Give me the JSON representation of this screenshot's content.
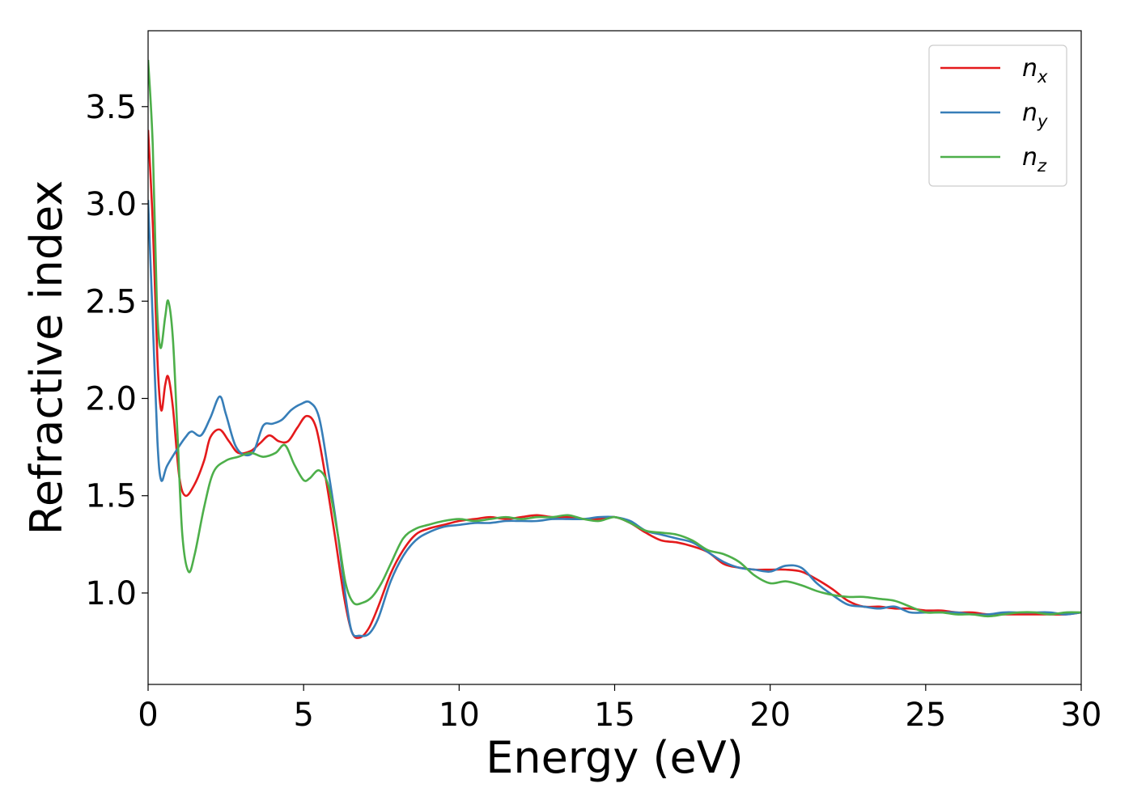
{
  "chart_data": {
    "type": "line",
    "title": "",
    "xlabel": "Energy (eV)",
    "ylabel": "Refractive index",
    "xlim": [
      0,
      30
    ],
    "ylim": [
      0.53,
      3.89
    ],
    "xticks": [
      0,
      5,
      10,
      15,
      20,
      25,
      30
    ],
    "xtick_labels": [
      "0",
      "5",
      "10",
      "15",
      "20",
      "25",
      "30"
    ],
    "yticks": [
      1.0,
      1.5,
      2.0,
      2.5,
      3.0,
      3.5
    ],
    "ytick_labels": [
      "1.0",
      "1.5",
      "2.0",
      "2.5",
      "3.0",
      "3.5"
    ],
    "grid": false,
    "legend_position": "top-right",
    "series": [
      {
        "name": "n_x",
        "legend_main": "n",
        "legend_sub": "x",
        "color": "#e41a1c",
        "points": [
          [
            0,
            3.38
          ],
          [
            0.15,
            2.9
          ],
          [
            0.3,
            2.2
          ],
          [
            0.42,
            1.94
          ],
          [
            0.55,
            2.07
          ],
          [
            0.65,
            2.11
          ],
          [
            0.8,
            1.95
          ],
          [
            1.0,
            1.6
          ],
          [
            1.2,
            1.5
          ],
          [
            1.5,
            1.56
          ],
          [
            1.8,
            1.68
          ],
          [
            2.0,
            1.8
          ],
          [
            2.3,
            1.84
          ],
          [
            2.6,
            1.78
          ],
          [
            2.9,
            1.72
          ],
          [
            3.3,
            1.73
          ],
          [
            3.6,
            1.77
          ],
          [
            3.9,
            1.81
          ],
          [
            4.2,
            1.78
          ],
          [
            4.5,
            1.78
          ],
          [
            4.8,
            1.85
          ],
          [
            5.1,
            1.91
          ],
          [
            5.4,
            1.85
          ],
          [
            5.7,
            1.6
          ],
          [
            6.0,
            1.3
          ],
          [
            6.3,
            0.98
          ],
          [
            6.55,
            0.8
          ],
          [
            6.8,
            0.77
          ],
          [
            7.1,
            0.82
          ],
          [
            7.4,
            0.93
          ],
          [
            7.8,
            1.1
          ],
          [
            8.2,
            1.22
          ],
          [
            8.6,
            1.3
          ],
          [
            9.0,
            1.33
          ],
          [
            9.5,
            1.35
          ],
          [
            10.0,
            1.37
          ],
          [
            10.5,
            1.38
          ],
          [
            11.0,
            1.39
          ],
          [
            11.5,
            1.38
          ],
          [
            12.0,
            1.39
          ],
          [
            12.5,
            1.4
          ],
          [
            13.0,
            1.39
          ],
          [
            13.5,
            1.39
          ],
          [
            14.0,
            1.38
          ],
          [
            14.5,
            1.38
          ],
          [
            15.0,
            1.39
          ],
          [
            15.5,
            1.36
          ],
          [
            16.0,
            1.31
          ],
          [
            16.5,
            1.27
          ],
          [
            17.0,
            1.26
          ],
          [
            17.5,
            1.24
          ],
          [
            18.0,
            1.21
          ],
          [
            18.5,
            1.15
          ],
          [
            19.0,
            1.13
          ],
          [
            19.5,
            1.12
          ],
          [
            20.0,
            1.12
          ],
          [
            20.5,
            1.12
          ],
          [
            21.0,
            1.11
          ],
          [
            21.5,
            1.07
          ],
          [
            22.0,
            1.02
          ],
          [
            22.5,
            0.96
          ],
          [
            23.0,
            0.93
          ],
          [
            23.5,
            0.93
          ],
          [
            24.0,
            0.92
          ],
          [
            24.5,
            0.92
          ],
          [
            25.0,
            0.91
          ],
          [
            25.5,
            0.91
          ],
          [
            26.0,
            0.9
          ],
          [
            26.5,
            0.9
          ],
          [
            27.0,
            0.89
          ],
          [
            27.5,
            0.89
          ],
          [
            28.0,
            0.89
          ],
          [
            28.5,
            0.89
          ],
          [
            29.0,
            0.89
          ],
          [
            29.5,
            0.89
          ],
          [
            30.0,
            0.9
          ]
        ]
      },
      {
        "name": "n_y",
        "legend_main": "n",
        "legend_sub": "y",
        "color": "#377eb8",
        "points": [
          [
            0,
            3.02
          ],
          [
            0.15,
            2.4
          ],
          [
            0.3,
            1.78
          ],
          [
            0.42,
            1.58
          ],
          [
            0.6,
            1.65
          ],
          [
            0.9,
            1.73
          ],
          [
            1.2,
            1.8
          ],
          [
            1.4,
            1.83
          ],
          [
            1.7,
            1.81
          ],
          [
            2.0,
            1.9
          ],
          [
            2.3,
            2.01
          ],
          [
            2.5,
            1.92
          ],
          [
            2.8,
            1.76
          ],
          [
            3.1,
            1.71
          ],
          [
            3.4,
            1.73
          ],
          [
            3.7,
            1.86
          ],
          [
            4.0,
            1.87
          ],
          [
            4.3,
            1.89
          ],
          [
            4.6,
            1.94
          ],
          [
            4.9,
            1.97
          ],
          [
            5.2,
            1.98
          ],
          [
            5.5,
            1.9
          ],
          [
            5.8,
            1.62
          ],
          [
            6.1,
            1.3
          ],
          [
            6.35,
            0.98
          ],
          [
            6.55,
            0.8
          ],
          [
            6.8,
            0.78
          ],
          [
            7.1,
            0.79
          ],
          [
            7.4,
            0.87
          ],
          [
            7.8,
            1.06
          ],
          [
            8.2,
            1.19
          ],
          [
            8.6,
            1.27
          ],
          [
            9.0,
            1.31
          ],
          [
            9.5,
            1.34
          ],
          [
            10.0,
            1.35
          ],
          [
            10.5,
            1.36
          ],
          [
            11.0,
            1.36
          ],
          [
            11.5,
            1.37
          ],
          [
            12.0,
            1.37
          ],
          [
            12.5,
            1.37
          ],
          [
            13.0,
            1.38
          ],
          [
            13.5,
            1.38
          ],
          [
            14.0,
            1.38
          ],
          [
            14.5,
            1.39
          ],
          [
            15.0,
            1.39
          ],
          [
            15.5,
            1.37
          ],
          [
            16.0,
            1.32
          ],
          [
            16.5,
            1.3
          ],
          [
            17.0,
            1.28
          ],
          [
            17.5,
            1.26
          ],
          [
            18.0,
            1.21
          ],
          [
            18.5,
            1.16
          ],
          [
            19.0,
            1.13
          ],
          [
            19.5,
            1.12
          ],
          [
            20.0,
            1.11
          ],
          [
            20.5,
            1.14
          ],
          [
            21.0,
            1.13
          ],
          [
            21.5,
            1.05
          ],
          [
            22.0,
            0.99
          ],
          [
            22.5,
            0.94
          ],
          [
            23.0,
            0.93
          ],
          [
            23.5,
            0.92
          ],
          [
            24.0,
            0.93
          ],
          [
            24.5,
            0.9
          ],
          [
            25.0,
            0.9
          ],
          [
            25.5,
            0.9
          ],
          [
            26.0,
            0.9
          ],
          [
            26.5,
            0.89
          ],
          [
            27.0,
            0.89
          ],
          [
            27.5,
            0.9
          ],
          [
            28.0,
            0.9
          ],
          [
            28.5,
            0.9
          ],
          [
            29.0,
            0.9
          ],
          [
            29.5,
            0.89
          ],
          [
            30.0,
            0.9
          ]
        ]
      },
      {
        "name": "n_z",
        "legend_main": "n",
        "legend_sub": "z",
        "color": "#4daf4a",
        "points": [
          [
            0,
            3.74
          ],
          [
            0.15,
            3.3
          ],
          [
            0.28,
            2.5
          ],
          [
            0.4,
            2.26
          ],
          [
            0.55,
            2.42
          ],
          [
            0.65,
            2.5
          ],
          [
            0.8,
            2.3
          ],
          [
            0.95,
            1.8
          ],
          [
            1.1,
            1.3
          ],
          [
            1.3,
            1.11
          ],
          [
            1.5,
            1.2
          ],
          [
            1.8,
            1.44
          ],
          [
            2.1,
            1.62
          ],
          [
            2.5,
            1.68
          ],
          [
            2.9,
            1.7
          ],
          [
            3.3,
            1.72
          ],
          [
            3.7,
            1.7
          ],
          [
            4.1,
            1.72
          ],
          [
            4.4,
            1.76
          ],
          [
            4.7,
            1.66
          ],
          [
            5.0,
            1.58
          ],
          [
            5.2,
            1.59
          ],
          [
            5.5,
            1.63
          ],
          [
            5.8,
            1.55
          ],
          [
            6.1,
            1.3
          ],
          [
            6.35,
            1.05
          ],
          [
            6.6,
            0.95
          ],
          [
            6.9,
            0.95
          ],
          [
            7.2,
            0.98
          ],
          [
            7.5,
            1.05
          ],
          [
            7.8,
            1.15
          ],
          [
            8.2,
            1.28
          ],
          [
            8.6,
            1.33
          ],
          [
            9.0,
            1.35
          ],
          [
            9.5,
            1.37
          ],
          [
            10.0,
            1.38
          ],
          [
            10.5,
            1.37
          ],
          [
            11.0,
            1.38
          ],
          [
            11.5,
            1.39
          ],
          [
            12.0,
            1.38
          ],
          [
            12.5,
            1.39
          ],
          [
            13.0,
            1.39
          ],
          [
            13.5,
            1.4
          ],
          [
            14.0,
            1.38
          ],
          [
            14.5,
            1.37
          ],
          [
            15.0,
            1.39
          ],
          [
            15.5,
            1.36
          ],
          [
            16.0,
            1.32
          ],
          [
            16.5,
            1.31
          ],
          [
            17.0,
            1.3
          ],
          [
            17.5,
            1.27
          ],
          [
            18.0,
            1.22
          ],
          [
            18.5,
            1.2
          ],
          [
            19.0,
            1.16
          ],
          [
            19.5,
            1.09
          ],
          [
            20.0,
            1.05
          ],
          [
            20.5,
            1.06
          ],
          [
            21.0,
            1.04
          ],
          [
            21.5,
            1.01
          ],
          [
            22.0,
            0.99
          ],
          [
            22.5,
            0.98
          ],
          [
            23.0,
            0.98
          ],
          [
            23.5,
            0.97
          ],
          [
            24.0,
            0.96
          ],
          [
            24.5,
            0.93
          ],
          [
            25.0,
            0.9
          ],
          [
            25.5,
            0.9
          ],
          [
            26.0,
            0.89
          ],
          [
            26.5,
            0.89
          ],
          [
            27.0,
            0.88
          ],
          [
            27.5,
            0.89
          ],
          [
            28.0,
            0.9
          ],
          [
            28.5,
            0.9
          ],
          [
            29.0,
            0.89
          ],
          [
            29.5,
            0.9
          ],
          [
            30.0,
            0.9
          ]
        ]
      }
    ]
  }
}
